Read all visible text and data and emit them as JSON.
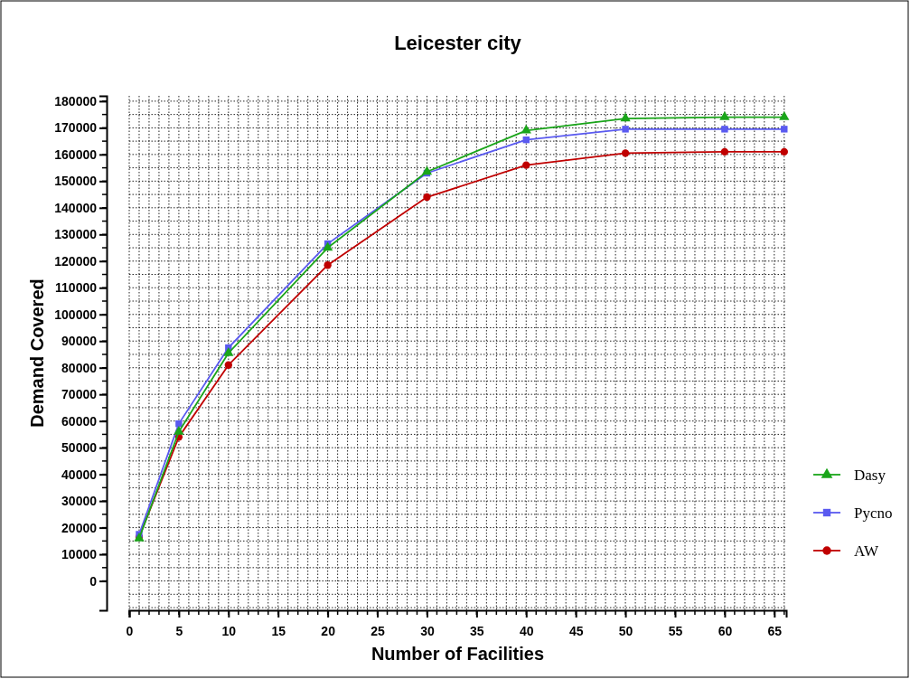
{
  "chart_data": {
    "type": "line",
    "title": "Leicester city",
    "xlabel": "Number of Facilities",
    "ylabel": "Demand Covered",
    "x": [
      1,
      5,
      10,
      20,
      30,
      40,
      50,
      60,
      66
    ],
    "series": [
      {
        "name": "Dasy",
        "color": "#1aa51a",
        "marker": "triangle",
        "values": [
          16000,
          56000,
          85500,
          125000,
          153500,
          169000,
          173500,
          174000,
          174000
        ]
      },
      {
        "name": "Pycno",
        "color": "#5a5af0",
        "marker": "square",
        "values": [
          17500,
          59000,
          87500,
          126500,
          153000,
          165500,
          169500,
          169500,
          169500
        ]
      },
      {
        "name": "AW",
        "color": "#c00000",
        "marker": "circle",
        "values": [
          16500,
          54000,
          81000,
          118500,
          144000,
          156000,
          160500,
          161000,
          161000
        ]
      }
    ],
    "xlim": [
      0,
      66.2
    ],
    "xticks": [
      0,
      5,
      10,
      15,
      20,
      25,
      30,
      35,
      40,
      45,
      50,
      55,
      60,
      65
    ],
    "ylim": [
      -11000,
      182000
    ],
    "yticks": [
      0,
      10000,
      20000,
      30000,
      40000,
      50000,
      60000,
      70000,
      80000,
      90000,
      100000,
      110000,
      120000,
      130000,
      140000,
      150000,
      160000,
      170000,
      180000
    ],
    "grid": true,
    "legend": "right",
    "line_style": "solid"
  }
}
